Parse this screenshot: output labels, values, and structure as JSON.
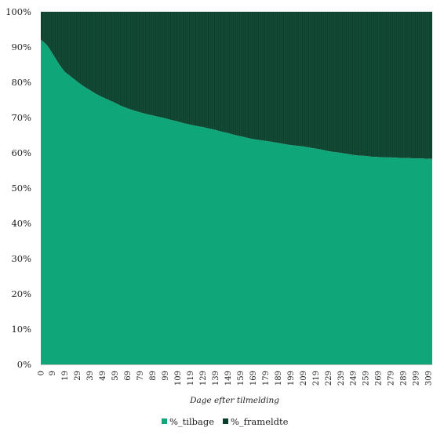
{
  "chart_data": {
    "type": "area",
    "stacked": "percent",
    "xlabel": "Dage efter tilmelding",
    "ylabel": "",
    "ylim": [
      0,
      100
    ],
    "y_tick_labels": [
      "0%",
      "10%",
      "20%",
      "30%",
      "40%",
      "50%",
      "60%",
      "70%",
      "80%",
      "90%",
      "100%"
    ],
    "x_tick_labels": [
      "0",
      "9",
      "19",
      "29",
      "39",
      "49",
      "59",
      "69",
      "79",
      "89",
      "99",
      "109",
      "119",
      "129",
      "139",
      "149",
      "159",
      "169",
      "179",
      "189",
      "199",
      "209",
      "219",
      "229",
      "239",
      "249",
      "259",
      "269",
      "279",
      "289",
      "299",
      "309"
    ],
    "x_range": [
      0,
      312
    ],
    "legend_position": "bottom",
    "series": [
      {
        "name": "%_tilbage",
        "color": "#0fa67a",
        "x": [
          0,
          1,
          3,
          5,
          7,
          9,
          12,
          15,
          19,
          24,
          29,
          34,
          39,
          44,
          49,
          54,
          59,
          64,
          69,
          74,
          79,
          84,
          89,
          94,
          99,
          104,
          109,
          114,
          119,
          124,
          129,
          134,
          139,
          144,
          149,
          154,
          159,
          164,
          169,
          174,
          179,
          184,
          189,
          194,
          199,
          204,
          209,
          214,
          219,
          224,
          229,
          234,
          239,
          244,
          249,
          254,
          259,
          264,
          269,
          274,
          279,
          284,
          289,
          294,
          299,
          304,
          309,
          312
        ],
        "values": [
          92.0,
          91.8,
          91.2,
          90.5,
          89.5,
          88.3,
          86.6,
          84.9,
          83.0,
          81.6,
          80.2,
          78.9,
          77.8,
          76.7,
          75.8,
          75.0,
          74.2,
          73.3,
          72.6,
          72.0,
          71.5,
          71.0,
          70.6,
          70.2,
          69.8,
          69.3,
          68.9,
          68.4,
          68.0,
          67.6,
          67.3,
          66.9,
          66.5,
          66.0,
          65.6,
          65.1,
          64.7,
          64.3,
          63.9,
          63.6,
          63.4,
          63.1,
          62.8,
          62.5,
          62.2,
          62.0,
          61.8,
          61.5,
          61.2,
          60.9,
          60.5,
          60.2,
          60.0,
          59.7,
          59.4,
          59.2,
          59.1,
          58.9,
          58.8,
          58.7,
          58.7,
          58.6,
          58.5,
          58.5,
          58.4,
          58.4,
          58.3,
          58.3
        ]
      },
      {
        "name": "%_frameldte",
        "color": "#0b3f2c",
        "x": [
          0,
          1,
          3,
          5,
          7,
          9,
          12,
          15,
          19,
          24,
          29,
          34,
          39,
          44,
          49,
          54,
          59,
          64,
          69,
          74,
          79,
          84,
          89,
          94,
          99,
          104,
          109,
          114,
          119,
          124,
          129,
          134,
          139,
          144,
          149,
          154,
          159,
          164,
          169,
          174,
          179,
          184,
          189,
          194,
          199,
          204,
          209,
          214,
          219,
          224,
          229,
          234,
          239,
          244,
          249,
          254,
          259,
          264,
          269,
          274,
          279,
          284,
          289,
          294,
          299,
          304,
          309,
          312
        ],
        "values": [
          8.0,
          8.2,
          8.8,
          9.5,
          10.5,
          11.7,
          13.4,
          15.1,
          17.0,
          18.4,
          19.8,
          21.1,
          22.2,
          23.3,
          24.2,
          25.0,
          25.8,
          26.7,
          27.4,
          28.0,
          28.5,
          29.0,
          29.4,
          29.8,
          30.2,
          30.7,
          31.1,
          31.6,
          32.0,
          32.4,
          32.7,
          33.1,
          33.5,
          34.0,
          34.4,
          34.9,
          35.3,
          35.7,
          36.1,
          36.4,
          36.6,
          36.9,
          37.2,
          37.5,
          37.8,
          38.0,
          38.2,
          38.5,
          38.8,
          39.1,
          39.5,
          39.8,
          40.0,
          40.3,
          40.6,
          40.8,
          40.9,
          41.1,
          41.2,
          41.3,
          41.3,
          41.4,
          41.5,
          41.5,
          41.6,
          41.6,
          41.7,
          41.7
        ]
      }
    ]
  }
}
